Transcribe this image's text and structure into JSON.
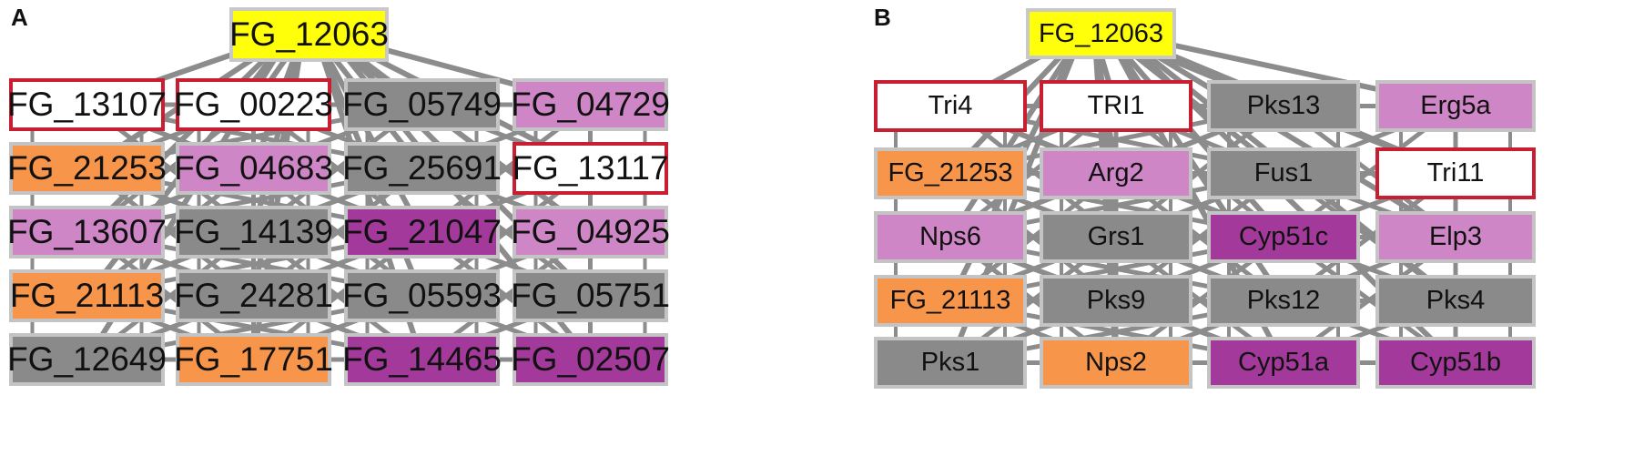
{
  "colors": {
    "root": "#ffff0a",
    "white": "#ffffff",
    "gray": "#8a8a8a",
    "orange": "#f7964a",
    "pink": "#cf86c6",
    "purple": "#a3399a",
    "edge": "#8c8c8c",
    "highlight_border": "#c81e32"
  },
  "panels": [
    {
      "label": "A",
      "root": "FG_12063",
      "rows": [
        [
          {
            "t": "FG_13107",
            "c": "white"
          },
          {
            "t": "FG_00223",
            "c": "white"
          },
          {
            "t": "FG_05749",
            "c": "gray"
          },
          {
            "t": "FG_04729",
            "c": "pink"
          }
        ],
        [
          {
            "t": "FG_21253",
            "c": "orange"
          },
          {
            "t": "FG_04683",
            "c": "pink"
          },
          {
            "t": "FG_25691",
            "c": "gray"
          },
          {
            "t": "FG_13117",
            "c": "white"
          }
        ],
        [
          {
            "t": "FG_13607",
            "c": "pink"
          },
          {
            "t": "FG_14139",
            "c": "gray"
          },
          {
            "t": "FG_21047",
            "c": "purple"
          },
          {
            "t": "FG_04925",
            "c": "pink"
          }
        ],
        [
          {
            "t": "FG_21113",
            "c": "orange"
          },
          {
            "t": "FG_24281",
            "c": "gray"
          },
          {
            "t": "FG_05593",
            "c": "gray"
          },
          {
            "t": "FG_05751",
            "c": "gray"
          }
        ],
        [
          {
            "t": "FG_12649",
            "c": "gray"
          },
          {
            "t": "FG_17751",
            "c": "orange"
          },
          {
            "t": "FG_14465",
            "c": "purple"
          },
          {
            "t": "FG_02507",
            "c": "purple"
          }
        ]
      ]
    },
    {
      "label": "B",
      "root": "FG_12063",
      "rows": [
        [
          {
            "t": "Tri4",
            "c": "white"
          },
          {
            "t": "TRI1",
            "c": "white"
          },
          {
            "t": "Pks13",
            "c": "gray"
          },
          {
            "t": "Erg5a",
            "c": "pink"
          }
        ],
        [
          {
            "t": "FG_21253",
            "c": "orange"
          },
          {
            "t": "Arg2",
            "c": "pink"
          },
          {
            "t": "Fus1",
            "c": "gray"
          },
          {
            "t": "Tri11",
            "c": "white"
          }
        ],
        [
          {
            "t": "Nps6",
            "c": "pink"
          },
          {
            "t": "Grs1",
            "c": "gray"
          },
          {
            "t": "Cyp51c",
            "c": "purple"
          },
          {
            "t": "Elp3",
            "c": "pink"
          }
        ],
        [
          {
            "t": "FG_21113",
            "c": "orange"
          },
          {
            "t": "Pks9",
            "c": "gray"
          },
          {
            "t": "Pks12",
            "c": "gray"
          },
          {
            "t": "Pks4",
            "c": "gray"
          }
        ],
        [
          {
            "t": "Pks1",
            "c": "gray"
          },
          {
            "t": "Nps2",
            "c": "orange"
          },
          {
            "t": "Cyp51a",
            "c": "purple"
          },
          {
            "t": "Cyp51b",
            "c": "purple"
          }
        ]
      ]
    }
  ]
}
